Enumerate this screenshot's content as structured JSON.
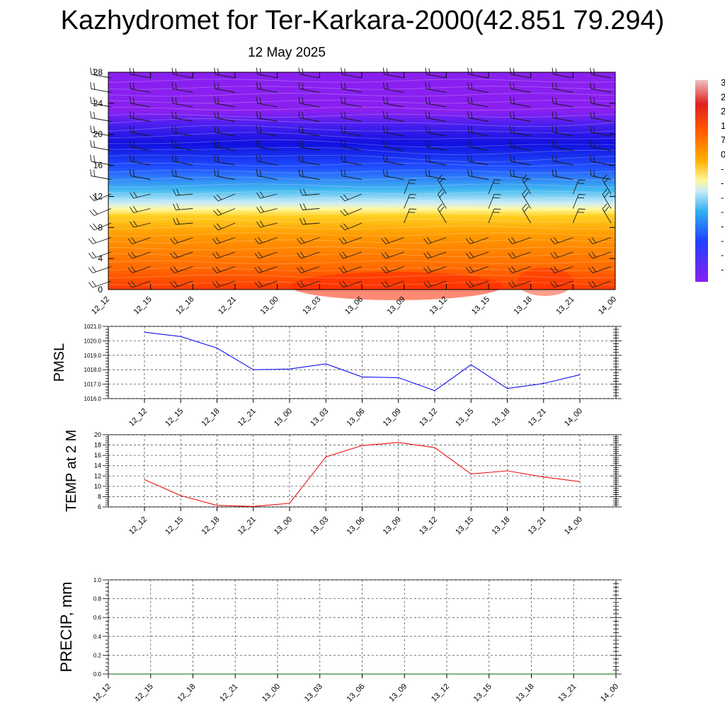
{
  "header": {
    "title": "Kazhydromet for Ter-Karkara-2000(42.851 79.294)",
    "date": "12 May 2025"
  },
  "time_labels": [
    "12_12",
    "12_15",
    "12_18",
    "12_21",
    "13_00",
    "13_03",
    "13_06",
    "13_09",
    "13_12",
    "13_15",
    "13_18",
    "13_21",
    "14_00"
  ],
  "chart_data": [
    {
      "type": "heatmap",
      "y_ticks": [
        0,
        4,
        8,
        12,
        16,
        20,
        24,
        28
      ],
      "ylim": [
        0,
        28
      ],
      "legend_placement": "right (vertical colorbar)",
      "colorbar_labels": [
        "3",
        "2",
        "2",
        "1",
        "7",
        "0",
        "-",
        "-",
        "-",
        "-",
        "-",
        "-",
        "-",
        "-"
      ],
      "colors": {
        "surface": "#ff3a00",
        "low_levels": "#ff8000",
        "mid_low": "#ffc010",
        "freezing": "#fff8a0",
        "cold": "#40b8f0",
        "colder": "#2050ff",
        "coldest": "#1010e0",
        "top": "#8a20f0"
      }
    },
    {
      "type": "line",
      "ylabel": "PMSL",
      "ylim": [
        1016.0,
        1021.0
      ],
      "y_ticks": [
        "1016.0",
        "1017.0",
        "1018.0",
        "1019.0",
        "1020.0",
        "1021.0"
      ],
      "color": "#1010ee",
      "values": [
        1020.6,
        1020.3,
        1019.5,
        1018.0,
        1018.05,
        1018.4,
        1017.5,
        1017.45,
        1016.55,
        1018.35,
        1016.7,
        1017.05,
        1017.65
      ]
    },
    {
      "type": "line",
      "ylabel": "TEMP at 2 M",
      "ylim": [
        6,
        20
      ],
      "y_ticks": [
        "6",
        "8",
        "10",
        "12",
        "14",
        "16",
        "18",
        "20"
      ],
      "color": "#ee1111",
      "values": [
        11.3,
        8.2,
        6.3,
        6.1,
        6.7,
        15.7,
        17.9,
        18.5,
        17.5,
        12.4,
        13.0,
        11.8,
        10.9
      ]
    },
    {
      "type": "line",
      "ylabel": "PRECIP, mm",
      "ylim": [
        0.0,
        1.0
      ],
      "y_ticks": [
        "0.0",
        "0.2",
        "0.4",
        "0.6",
        "0.8",
        "1.0"
      ],
      "color": "#006600",
      "values": [
        0,
        0,
        0,
        0,
        0,
        0,
        0,
        0,
        0,
        0,
        0,
        0,
        0
      ]
    }
  ]
}
